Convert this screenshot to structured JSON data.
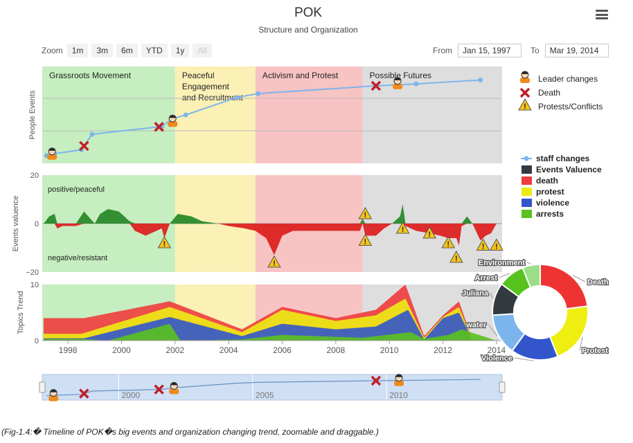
{
  "header": {
    "title": "POK",
    "subtitle": "Structure and Organization"
  },
  "zoom": {
    "label": "Zoom",
    "buttons": [
      "1m",
      "3m",
      "6m",
      "YTD",
      "1y",
      "All"
    ],
    "disabled": "All"
  },
  "range": {
    "from_label": "From",
    "from_value": "Jan 15, 1997",
    "to_label": "To",
    "to_value": "Mar 19, 2014"
  },
  "caption": "(Fig-1.4:� Timeline of POK�s big events and organization changing trend, zoomable and draggable.)",
  "colors": {
    "period_green": "#c6eec0",
    "period_yellow": "#fbf0b5",
    "period_red": "#f7c3c3",
    "period_gray": "#dedede",
    "staff_line": "#7cb5ec",
    "death": "#f03c3c",
    "protest": "#ecec14",
    "violence": "#3355cc",
    "arrests": "#5ac11e",
    "valuence": "#333a40",
    "positive": "#2a8a2a",
    "negative": "#dd2222"
  },
  "chart_data": {
    "type": "timeline",
    "xaxis": {
      "range": [
        1997.04,
        2014.21
      ],
      "ticks": [
        "1998",
        "2000",
        "2002",
        "2004",
        "2006",
        "2008",
        "2010",
        "2012",
        "2014"
      ]
    },
    "periods": [
      {
        "label": "Grassroots Movement",
        "start": 1997.04,
        "end": 2002.0
      },
      {
        "label": "Peaceful Engagement and Recruitment",
        "lines": [
          "Peaceful",
          "Engagement",
          "and Recruitment"
        ],
        "start": 2002.0,
        "end": 2005.0
      },
      {
        "label": "Activism and Protest",
        "start": 2005.0,
        "end": 2009.0
      },
      {
        "label": "Possible Futures",
        "start": 2009.0,
        "end": 2014.21
      }
    ],
    "people_events": {
      "ylabel": "People Events",
      "staff_changes": [
        [
          1997.2,
          0.08
        ],
        [
          1997.5,
          0.1
        ],
        [
          1998.5,
          0.14
        ],
        [
          1998.9,
          0.3
        ],
        [
          2001.5,
          0.38
        ],
        [
          2001.9,
          0.46
        ],
        [
          2002.4,
          0.5
        ],
        [
          2004.3,
          0.68
        ],
        [
          2005.1,
          0.72
        ],
        [
          2009.5,
          0.8
        ],
        [
          2011.0,
          0.82
        ],
        [
          2013.4,
          0.86
        ]
      ],
      "leader_changes": [
        1997.2,
        2001.7,
        2010.1
      ],
      "deaths": [
        1998.6,
        2001.4,
        2009.5
      ]
    },
    "events_valuence": {
      "ylabel": "Events valuence",
      "ylim": [
        -20,
        20
      ],
      "yticks": [
        "20",
        "0",
        "−20"
      ],
      "positive_label": "positive/peaceful",
      "negative_label": "negative/resistant",
      "series": [
        [
          1997.1,
          0
        ],
        [
          1997.3,
          3
        ],
        [
          1997.5,
          4
        ],
        [
          1997.6,
          -2
        ],
        [
          1997.8,
          -1
        ],
        [
          1998.3,
          -1
        ],
        [
          1998.6,
          5
        ],
        [
          1999.0,
          0
        ],
        [
          1999.2,
          4
        ],
        [
          1999.5,
          6
        ],
        [
          1999.9,
          5
        ],
        [
          2000.3,
          1
        ],
        [
          2000.5,
          -3
        ],
        [
          2000.9,
          -5
        ],
        [
          2001.3,
          -3
        ],
        [
          2001.5,
          -2
        ],
        [
          2001.6,
          -6
        ],
        [
          2001.8,
          0
        ],
        [
          2002.1,
          4
        ],
        [
          2002.6,
          3
        ],
        [
          2003.0,
          1
        ],
        [
          2003.6,
          0
        ],
        [
          2004.0,
          -1
        ],
        [
          2004.6,
          -2
        ],
        [
          2005.0,
          -3
        ],
        [
          2005.4,
          -6
        ],
        [
          2005.7,
          -13
        ],
        [
          2006.0,
          -5
        ],
        [
          2006.4,
          -3
        ],
        [
          2007.0,
          -3
        ],
        [
          2007.5,
          -3
        ],
        [
          2008.2,
          -3
        ],
        [
          2008.9,
          -3
        ],
        [
          2009.0,
          2
        ],
        [
          2009.1,
          -5
        ],
        [
          2009.5,
          -5
        ],
        [
          2009.8,
          -2
        ],
        [
          2010.1,
          0
        ],
        [
          2010.4,
          3
        ],
        [
          2010.5,
          8
        ],
        [
          2010.6,
          -1
        ],
        [
          2011.0,
          -3
        ],
        [
          2011.5,
          -4
        ],
        [
          2011.9,
          -5
        ],
        [
          2012.2,
          -6
        ],
        [
          2012.5,
          -6
        ],
        [
          2012.6,
          -9
        ],
        [
          2012.7,
          -1
        ],
        [
          2012.9,
          3
        ],
        [
          2013.1,
          0
        ],
        [
          2013.4,
          -7
        ],
        [
          2013.6,
          -5
        ],
        [
          2013.8,
          -4
        ],
        [
          2014.0,
          0
        ]
      ],
      "protests": [
        [
          2001.6,
          -8
        ],
        [
          2005.7,
          -16
        ],
        [
          2009.1,
          4
        ],
        [
          2009.1,
          -7
        ],
        [
          2010.5,
          -2
        ],
        [
          2011.5,
          -4
        ],
        [
          2012.2,
          -8
        ],
        [
          2012.5,
          -14
        ],
        [
          2013.5,
          -9
        ],
        [
          2014.0,
          -9
        ]
      ]
    },
    "topics_trend": {
      "ylabel": "Topics Trend",
      "ylim": [
        0,
        10
      ],
      "yticks": [
        "10",
        "0"
      ],
      "series": [
        {
          "name": "arrests",
          "points": [
            [
              1998.4,
              0.3
            ],
            [
              1999.5,
              0
            ],
            [
              2001.8,
              3
            ],
            [
              2002.2,
              0
            ],
            [
              2004.5,
              0.2
            ],
            [
              2006.0,
              1.0
            ],
            [
              2009.0,
              0.5
            ],
            [
              2010.8,
              1.5
            ],
            [
              2011.3,
              0.3
            ],
            [
              2012.2,
              1.0
            ],
            [
              2012.7,
              2.0
            ],
            [
              2014.0,
              0
            ]
          ]
        },
        {
          "name": "violence",
          "points": [
            [
              1998.6,
              0.4
            ],
            [
              2001.8,
              4.2
            ],
            [
              2004.5,
              0.8
            ],
            [
              2006.0,
              3.0
            ],
            [
              2008.0,
              2.0
            ],
            [
              2009.5,
              2.5
            ],
            [
              2010.7,
              5.5
            ],
            [
              2011.3,
              0.2
            ],
            [
              2012.0,
              4.0
            ],
            [
              2012.6,
              5.0
            ],
            [
              2013.1,
              0
            ]
          ]
        },
        {
          "name": "protest",
          "points": [
            [
              1998.5,
              1.2
            ],
            [
              2001.8,
              6.0
            ],
            [
              2004.5,
              1.5
            ],
            [
              2006.0,
              5.5
            ],
            [
              2008.0,
              3.5
            ],
            [
              2009.5,
              4.5
            ],
            [
              2010.6,
              7.5
            ],
            [
              2011.3,
              0.5
            ],
            [
              2012.0,
              4.2
            ],
            [
              2012.6,
              6.0
            ],
            [
              2013.1,
              0
            ]
          ]
        },
        {
          "name": "death",
          "points": [
            [
              1998.6,
              4.0
            ],
            [
              2001.8,
              7.0
            ],
            [
              2004.5,
              2.0
            ],
            [
              2006.0,
              6.0
            ],
            [
              2008.0,
              4.0
            ],
            [
              2009.5,
              5.5
            ],
            [
              2010.6,
              10.0
            ],
            [
              2011.3,
              0.8
            ],
            [
              2012.0,
              4.5
            ],
            [
              2012.6,
              7.0
            ],
            [
              2013.1,
              0
            ]
          ]
        }
      ]
    },
    "legend_top": [
      "Leader changes",
      "Death",
      "Protests/Conflicts"
    ],
    "legend_series": [
      "staff changes",
      "Events Valuence",
      "death",
      "protest",
      "violence",
      "arrests"
    ],
    "pie": {
      "type": "pie",
      "slices": [
        {
          "label": "Death",
          "value": 23
        },
        {
          "label": "Protest",
          "value": 21
        },
        {
          "label": "Violence",
          "value": 16
        },
        {
          "label": "water",
          "value": 14
        },
        {
          "label": "Juliana",
          "value": 11
        },
        {
          "label": "Arrest",
          "value": 9
        },
        {
          "label": "Environment",
          "value": 6
        }
      ],
      "colors": [
        "#ee3333",
        "#eeee11",
        "#3355cc",
        "#7cb5ec",
        "#333a40",
        "#55c21e",
        "#9adf88"
      ]
    },
    "navigator": {
      "ticks": [
        "2000",
        "2005",
        "2010"
      ],
      "tick_years": [
        2000,
        2005,
        2010
      ]
    }
  }
}
